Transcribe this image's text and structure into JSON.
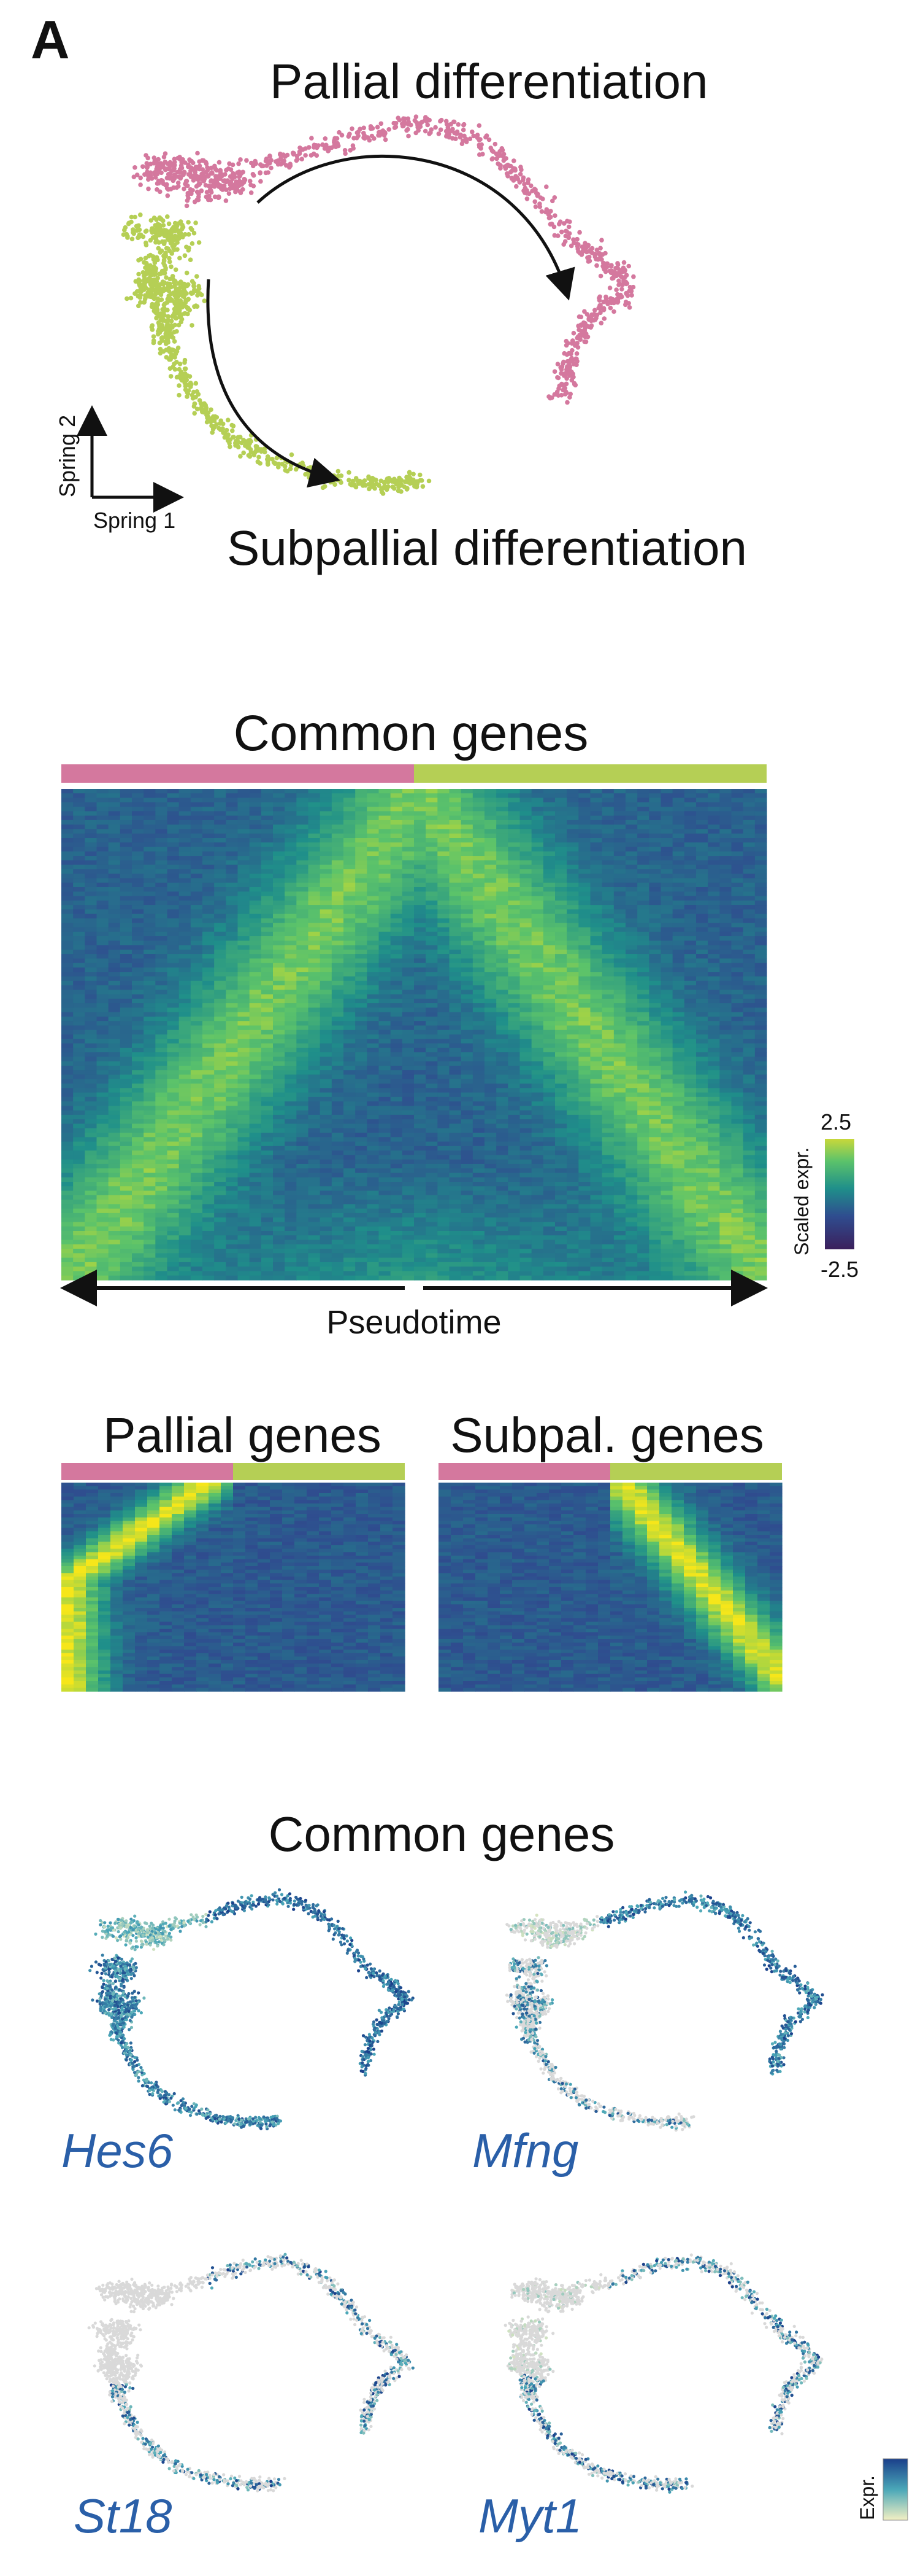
{
  "panel_label": "A",
  "top_section": {
    "label_pallial": "Pallial differentiation",
    "label_subpallial": "Subpallial differentiation",
    "axis_y": "Spring 2",
    "axis_x": "Spring 1"
  },
  "heatmap_common": {
    "title": "Common genes",
    "colorbar_title": "Scaled expr.",
    "colorbar_max": "2.5",
    "colorbar_min": "-2.5",
    "x_label": "Pseudotime"
  },
  "heatmap_pallial": {
    "title": "Pallial genes"
  },
  "heatmap_subpallial": {
    "title": "Subpal. genes"
  },
  "feature_section": {
    "title": "Common genes",
    "genes": [
      "Hes6",
      "Mfng",
      "St18",
      "Myt1"
    ],
    "colorbar_title": "Expr."
  },
  "colors": {
    "pallial": "#d4789e",
    "subpallial": "#b5cf55",
    "heat_low": "#3b1f5c",
    "heat_mid": "#2f6aa0",
    "heat_high": "#f6e61a",
    "gene_text": "#2a5fa8",
    "expr_low": "#f3f0c3",
    "expr_high": "#1a3f8a"
  }
}
